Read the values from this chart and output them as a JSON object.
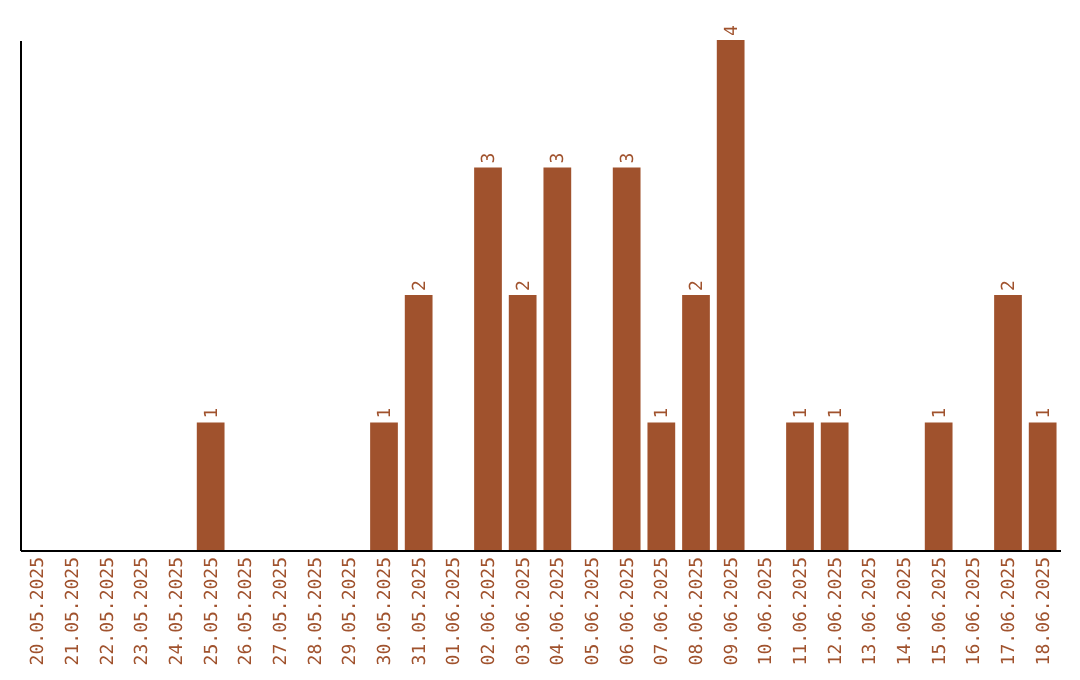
{
  "chart_data": {
    "type": "bar",
    "color": "#a0522d",
    "tick_labels": "x",
    "categories": [
      "20.05.2025",
      "21.05.2025",
      "22.05.2025",
      "23.05.2025",
      "24.05.2025",
      "25.05.2025",
      "26.05.2025",
      "27.05.2025",
      "28.05.2025",
      "29.05.2025",
      "30.05.2025",
      "31.05.2025",
      "01.06.2025",
      "02.06.2025",
      "03.06.2025",
      "04.06.2025",
      "05.06.2025",
      "06.06.2025",
      "07.06.2025",
      "08.06.2025",
      "09.06.2025",
      "10.06.2025",
      "11.06.2025",
      "12.06.2025",
      "13.06.2025",
      "14.06.2025",
      "15.06.2025",
      "16.06.2025",
      "17.06.2025",
      "18.06.2025"
    ],
    "values": [
      0,
      0,
      0,
      0,
      0,
      1,
      0,
      0,
      0,
      0,
      1,
      2,
      0,
      3,
      2,
      3,
      0,
      3,
      1,
      2,
      4,
      0,
      1,
      1,
      0,
      0,
      1,
      0,
      2,
      1
    ],
    "value_labels": [
      null,
      null,
      null,
      null,
      null,
      "1",
      null,
      null,
      null,
      null,
      "1",
      "2",
      null,
      "3",
      "2",
      "3",
      null,
      "3",
      "1",
      "2",
      "4",
      null,
      "1",
      "1",
      null,
      null,
      "1",
      null,
      "2",
      "1"
    ]
  }
}
